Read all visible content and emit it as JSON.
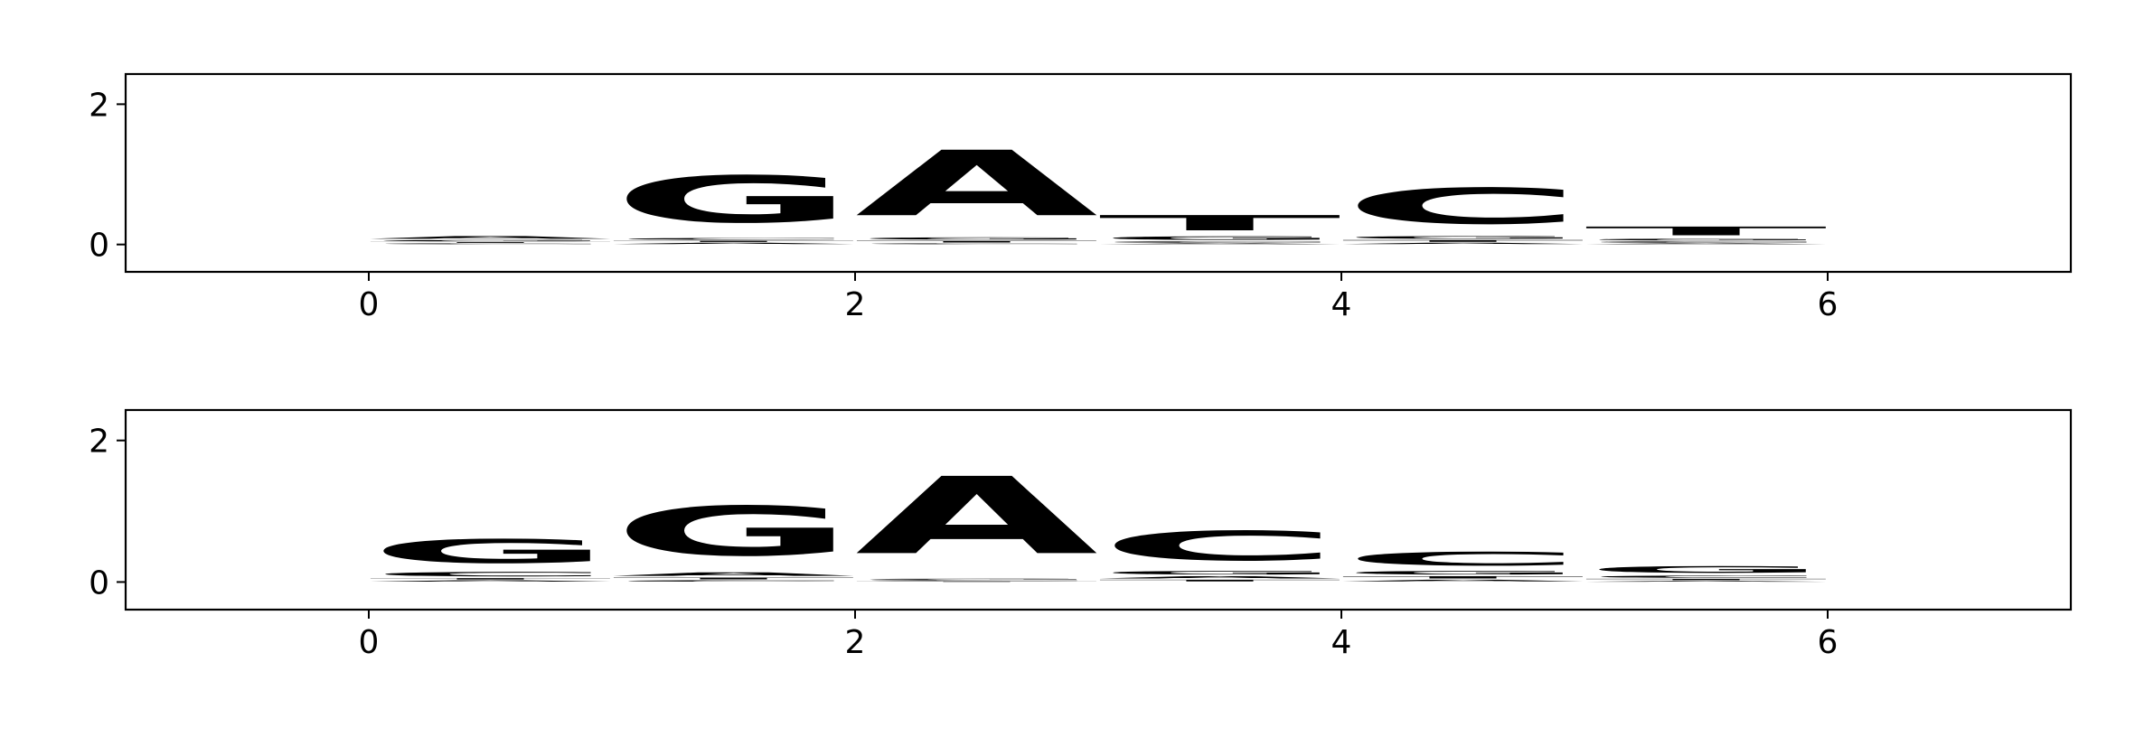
{
  "chart_data": [
    {
      "type": "logo",
      "x": [
        0,
        1,
        2,
        3,
        4,
        5
      ],
      "series": [
        {
          "name": "A",
          "color": "#008000",
          "values": [
            0.06,
            0.03,
            1.5,
            0.02,
            0.03,
            0.02
          ]
        },
        {
          "name": "C",
          "color": "#0000ff",
          "values": [
            0.02,
            0.04,
            0.02,
            0.03,
            0.82,
            0.03
          ]
        },
        {
          "name": "G",
          "color": "#ffa500",
          "values": [
            0.03,
            1.07,
            0.05,
            0.08,
            0.06,
            0.04
          ]
        },
        {
          "name": "T",
          "color": "#ff0000",
          "values": [
            0.02,
            0.03,
            0.04,
            0.35,
            0.04,
            0.2
          ]
        }
      ],
      "xlim": [
        -1,
        7
      ],
      "xticks": [
        0,
        2,
        4,
        6
      ],
      "ylim": [
        -0.39,
        2.43
      ],
      "yticks": [
        0,
        2
      ]
    },
    {
      "type": "logo",
      "x": [
        0,
        1,
        2,
        3,
        4,
        5
      ],
      "series": [
        {
          "name": "A",
          "color": "#008000",
          "values": [
            0.03,
            0.08,
            1.75,
            0.05,
            0.04,
            0.02
          ]
        },
        {
          "name": "C",
          "color": "#0000ff",
          "values": [
            0.1,
            0.03,
            0.02,
            0.67,
            0.31,
            0.05
          ]
        },
        {
          "name": "G",
          "color": "#ffa500",
          "values": [
            0.54,
            1.12,
            0.02,
            0.08,
            0.08,
            0.15
          ]
        },
        {
          "name": "T",
          "color": "#ff0000",
          "values": [
            0.03,
            0.04,
            0.01,
            0.04,
            0.05,
            0.03
          ]
        }
      ],
      "xlim": [
        -1,
        7
      ],
      "xticks": [
        0,
        2,
        4,
        6
      ],
      "ylim": [
        -0.39,
        2.43
      ],
      "yticks": [
        0,
        2
      ]
    }
  ]
}
